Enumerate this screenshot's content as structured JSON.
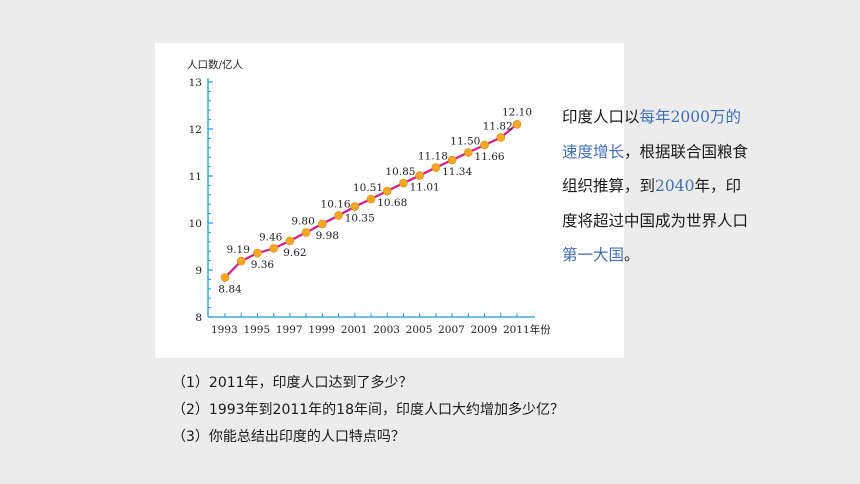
{
  "chart_data": {
    "type": "line",
    "ylabel": "人口数/亿人",
    "xlabel": "年份",
    "ylim": [
      8,
      13
    ],
    "y_ticks": [
      8,
      9,
      10,
      11,
      12,
      13
    ],
    "x_tick_labels": [
      "1993",
      "1995",
      "1997",
      "1999",
      "2001",
      "2003",
      "2005",
      "2007",
      "2009",
      "2011年份"
    ],
    "x": [
      1993,
      1994,
      1995,
      1996,
      1997,
      1998,
      1999,
      2000,
      2001,
      2002,
      2003,
      2004,
      2005,
      2006,
      2007,
      2008,
      2009,
      2010,
      2011
    ],
    "values": [
      8.84,
      9.19,
      9.36,
      9.46,
      9.62,
      9.8,
      9.98,
      10.16,
      10.35,
      10.51,
      10.68,
      10.85,
      11.01,
      11.18,
      11.34,
      11.5,
      11.66,
      11.82,
      12.1
    ],
    "data_labels": [
      "8.84",
      "9.19",
      "9.36",
      "9.46",
      "9.62",
      "9.80",
      "9.98",
      "10.16",
      "10.35",
      "10.51",
      "10.68",
      "10.85",
      "11.01",
      "11.18",
      "11.34",
      "11.50",
      "11.66",
      "11.82",
      "12.10"
    ],
    "line_color": "#d81b8c",
    "marker_color": "#f5a623",
    "axis_color": "#1e9bd7",
    "grid": false
  },
  "side_text": {
    "part1": "印度人口以",
    "highlight1": "每年2000万的速度增长",
    "part2": "，根据联合国粮食组织推算，到",
    "highlight2": "2040",
    "part3": "年，印度将超过中国成为世界人口",
    "highlight3": "第一大国",
    "part4": "。",
    "highlight_color": "#3f6fb8"
  },
  "questions": [
    "（1）2011年，印度人口达到了多少？",
    "（2）1993年到2011年的18年间，印度人口大约增加多少亿？",
    "（3）你能总结出印度的人口特点吗？"
  ]
}
